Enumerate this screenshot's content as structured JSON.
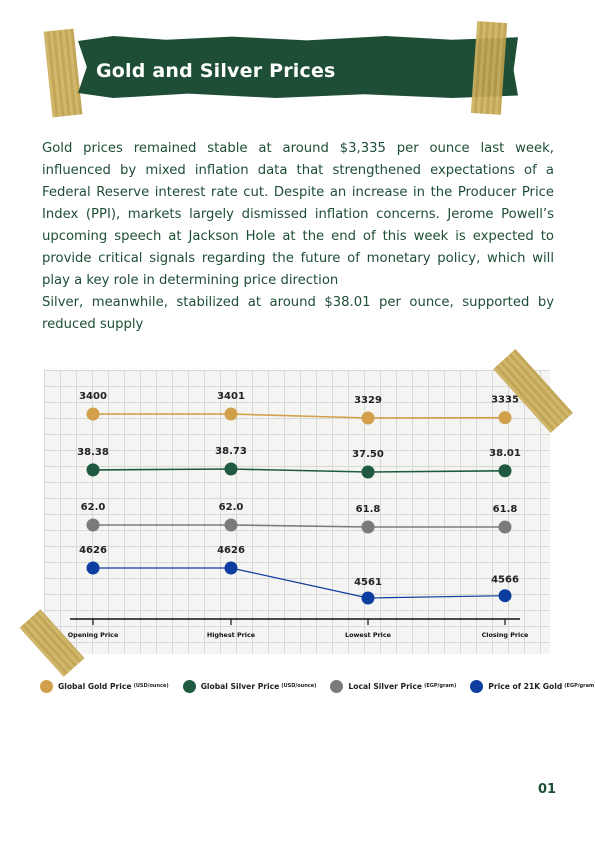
{
  "title": "Gold and Silver Prices",
  "paragraphs": [
    "Gold prices remained stable at around $3,335 per ounce last week, influenced by mixed inflation data that strengthened expectations of a Federal Reserve interest rate cut. Despite an increase in the Producer Price Index (PPI), markets largely dismissed inflation concerns. Jerome Powell’s upcoming speech at Jackson Hole at the end of this week is expected to provide critical signals regarding the future of monetary policy, which will play a key role in determining price direction",
    "Silver, meanwhile, stabilized at around $38.01 per ounce, supported by reduced supply"
  ],
  "chart_data": {
    "type": "line",
    "categories": [
      "Opening Price",
      "Highest Price",
      "Lowest Price",
      "Closing Price"
    ],
    "series": [
      {
        "name": "Global Gold Price",
        "unit": "(USD/ounce)",
        "color": "#d2a04b",
        "values": [
          3400,
          3401,
          3329,
          3335
        ],
        "labels": [
          "3400",
          "3401",
          "3329",
          "3335"
        ]
      },
      {
        "name": "Global Silver Price",
        "unit": "(USD/ounce)",
        "color": "#1f5a40",
        "values": [
          38.38,
          38.73,
          37.5,
          38.01
        ],
        "labels": [
          "38.38",
          "38.73",
          "37.50",
          "38.01"
        ]
      },
      {
        "name": "Local Silver Price",
        "unit": "(EGP/gram)",
        "color": "#7b7b7b",
        "values": [
          62.0,
          62.0,
          61.8,
          61.8
        ],
        "labels": [
          "62.0",
          "62.0",
          "61.8",
          "61.8"
        ]
      },
      {
        "name": "Price of 21K Gold",
        "unit": "(EGP/gram)",
        "color": "#0d3d9e",
        "values": [
          4626,
          4626,
          4561,
          4566
        ],
        "labels": [
          "4626",
          "4626",
          "4561",
          "4566"
        ]
      }
    ],
    "legend_position": "bottom",
    "grid": true
  },
  "page_number": "01"
}
